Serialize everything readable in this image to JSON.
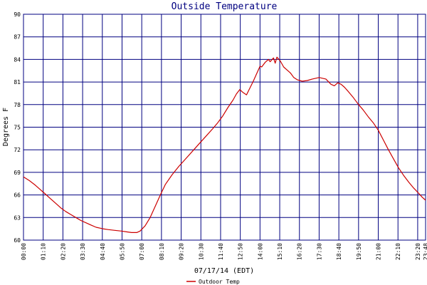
{
  "chart_data": {
    "type": "line",
    "title": "Outside Temperature",
    "ylabel": "Degrees F",
    "xlabel": "07/17/14 (EDT)",
    "ylim": [
      60,
      90
    ],
    "yticks": [
      60,
      63,
      66,
      69,
      72,
      75,
      78,
      81,
      84,
      87,
      90
    ],
    "xlim_hours": [
      0,
      23.8
    ],
    "xticks": [
      {
        "label": "00:00",
        "h": 0
      },
      {
        "label": "01:10",
        "h": 1.1667
      },
      {
        "label": "02:20",
        "h": 2.3333
      },
      {
        "label": "03:30",
        "h": 3.5
      },
      {
        "label": "04:40",
        "h": 4.6667
      },
      {
        "label": "05:50",
        "h": 5.8333
      },
      {
        "label": "07:00",
        "h": 7.0
      },
      {
        "label": "08:10",
        "h": 8.1667
      },
      {
        "label": "09:20",
        "h": 9.3333
      },
      {
        "label": "10:30",
        "h": 10.5
      },
      {
        "label": "11:40",
        "h": 11.6667
      },
      {
        "label": "12:50",
        "h": 12.8333
      },
      {
        "label": "14:00",
        "h": 14.0
      },
      {
        "label": "15:10",
        "h": 15.1667
      },
      {
        "label": "16:20",
        "h": 16.3333
      },
      {
        "label": "17:30",
        "h": 17.5
      },
      {
        "label": "18:40",
        "h": 18.6667
      },
      {
        "label": "19:50",
        "h": 19.8333
      },
      {
        "label": "21:00",
        "h": 21.0
      },
      {
        "label": "22:10",
        "h": 22.1667
      },
      {
        "label": "23:20",
        "h": 23.3333
      },
      {
        "label": "23:48",
        "h": 23.8
      }
    ],
    "grid": true,
    "legend_position": "bottom-left",
    "series": [
      {
        "name": "Outdoor Temp",
        "color": "#cc0000",
        "x": [
          0.0,
          0.35,
          0.7,
          1.0,
          1.3,
          1.6,
          1.9,
          2.2,
          2.5,
          2.8,
          3.1,
          3.4,
          3.7,
          4.0,
          4.3,
          4.7,
          5.0,
          5.4,
          5.8,
          6.1,
          6.4,
          6.7,
          6.9,
          7.2,
          7.5,
          7.8,
          8.1,
          8.4,
          8.8,
          9.2,
          9.6,
          10.0,
          10.4,
          10.8,
          11.2,
          11.5,
          11.8,
          12.1,
          12.4,
          12.6,
          12.8,
          13.0,
          13.2,
          13.4,
          13.6,
          13.8,
          14.0,
          14.1,
          14.3,
          14.5,
          14.6,
          14.8,
          14.9,
          15.0,
          15.2,
          15.4,
          15.6,
          15.8,
          16.0,
          16.2,
          16.5,
          16.8,
          17.1,
          17.5,
          17.9,
          18.2,
          18.4,
          18.6,
          18.8,
          19.0,
          19.2,
          19.5,
          19.8,
          20.1,
          20.4,
          20.7,
          21.0,
          21.3,
          21.6,
          21.9,
          22.2,
          22.5,
          22.8,
          23.1,
          23.4,
          23.6,
          23.8
        ],
        "y": [
          68.4,
          67.9,
          67.3,
          66.7,
          66.1,
          65.5,
          64.9,
          64.3,
          63.8,
          63.4,
          63.0,
          62.6,
          62.3,
          62.0,
          61.7,
          61.5,
          61.4,
          61.3,
          61.2,
          61.1,
          61.0,
          61.0,
          61.2,
          61.9,
          63.0,
          64.5,
          66.0,
          67.4,
          68.7,
          69.8,
          70.8,
          71.8,
          72.8,
          73.8,
          74.8,
          75.6,
          76.5,
          77.6,
          78.6,
          79.4,
          80.0,
          79.6,
          79.3,
          80.2,
          81.1,
          82.1,
          83.1,
          83.0,
          83.6,
          84.0,
          83.7,
          84.2,
          83.5,
          84.3,
          83.8,
          83.0,
          82.6,
          82.2,
          81.6,
          81.3,
          81.1,
          81.2,
          81.4,
          81.6,
          81.4,
          80.7,
          80.5,
          80.9,
          80.7,
          80.3,
          79.8,
          79.0,
          78.1,
          77.3,
          76.4,
          75.6,
          74.6,
          73.3,
          72.0,
          70.8,
          69.6,
          68.6,
          67.7,
          66.9,
          66.2,
          65.7,
          65.3
        ]
      }
    ]
  }
}
